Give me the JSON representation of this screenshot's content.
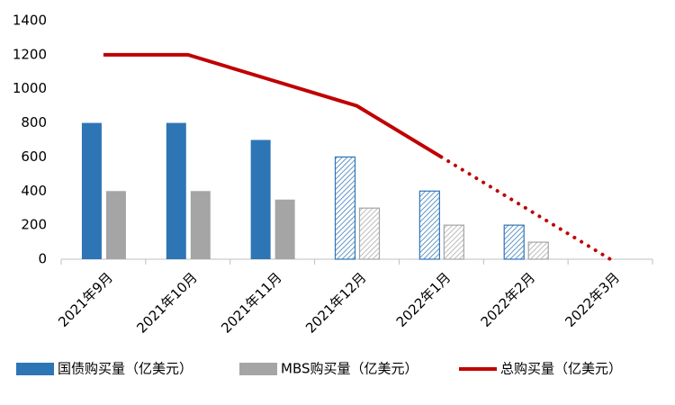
{
  "chart_data": {
    "type": "bar_line",
    "categories": [
      "2021年9月",
      "2021年10月",
      "2021年11月",
      "2021年12月",
      "2022年1月",
      "2022年2月",
      "2022年3月"
    ],
    "series": [
      {
        "name": "国债购买量（亿美元）",
        "type": "bar",
        "color": "#2e75b6",
        "hatched_from": 3,
        "values": [
          800,
          800,
          700,
          600,
          400,
          200,
          null
        ]
      },
      {
        "name": "MBS购买量（亿美元）",
        "type": "bar",
        "color": "#a5a5a5",
        "hatched_from": 3,
        "values": [
          400,
          400,
          350,
          300,
          200,
          100,
          null
        ]
      },
      {
        "name": "总购买量（亿美元）",
        "type": "line",
        "color": "#c00000",
        "dotted_from": 4,
        "values": [
          1200,
          1200,
          1050,
          900,
          600,
          300,
          0
        ]
      }
    ],
    "ylim": [
      0,
      1400
    ],
    "yticks": [
      0,
      200,
      400,
      600,
      800,
      1000,
      1200,
      1400
    ],
    "grid": false,
    "legend": "bottom"
  }
}
